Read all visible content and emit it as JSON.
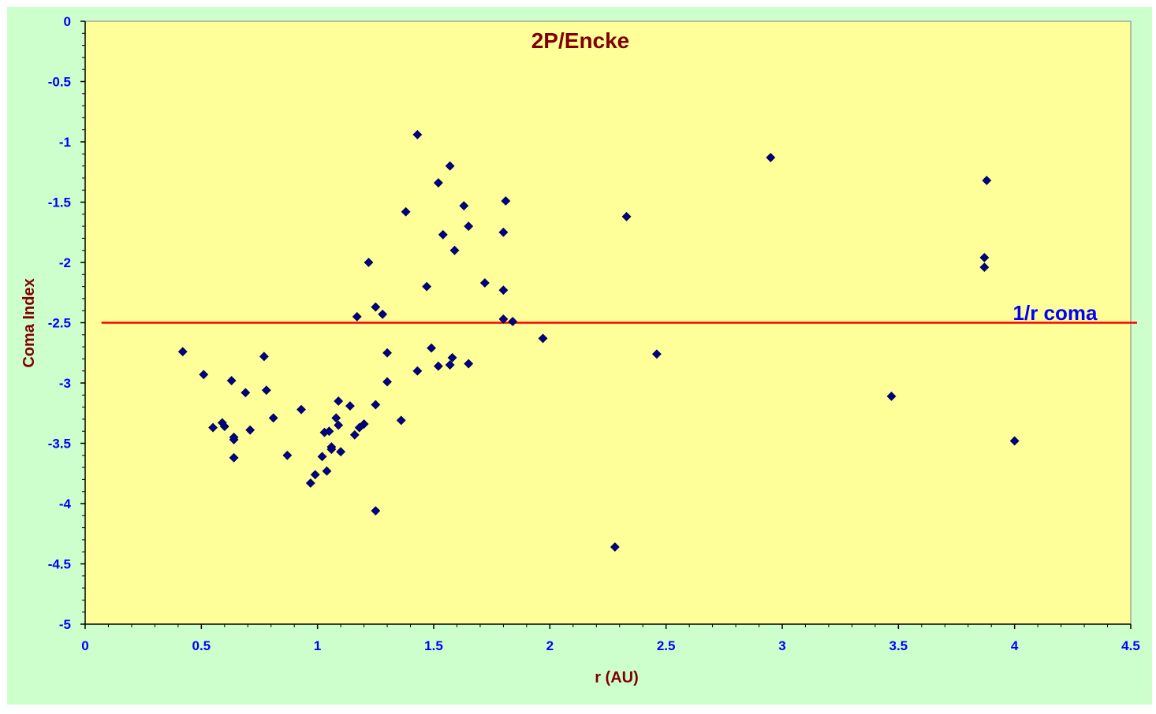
{
  "colors": {
    "outer_background": "#ccffcc",
    "plot_background": "#ffff99",
    "axis": "#000000",
    "marker": "#000080",
    "reference_line": "#ff0000",
    "tick_labels": "#0000ff",
    "axis_titles": "#800000",
    "title": "#800000",
    "annotation": "#0000ff"
  },
  "chart_data": {
    "type": "scatter",
    "title": "2P/Encke",
    "xlabel": "r (AU)",
    "ylabel": "Coma Index",
    "xlim": [
      0,
      4.5
    ],
    "ylim": [
      -5,
      0
    ],
    "x_ticks": [
      "0",
      "0.5",
      "1",
      "1.5",
      "2",
      "2.5",
      "3",
      "3.5",
      "4",
      "4.5"
    ],
    "x_tick_values": [
      0,
      0.5,
      1,
      1.5,
      2,
      2.5,
      3,
      3.5,
      4,
      4.5
    ],
    "y_ticks": [
      "0",
      "-0.5",
      "-1",
      "-1.5",
      "-2",
      "-2.5",
      "-3",
      "-3.5",
      "-4",
      "-4.5",
      "-5"
    ],
    "y_tick_values": [
      0,
      -0.5,
      -1,
      -1.5,
      -2,
      -2.5,
      -3,
      -3.5,
      -4,
      -4.5,
      -5
    ],
    "grid": false,
    "marker": "diamond",
    "reference_line": {
      "y": -2.5,
      "x_range": [
        0.07,
        4.5
      ],
      "label": "1/r coma"
    },
    "points": [
      [
        0.42,
        -2.74
      ],
      [
        0.51,
        -2.93
      ],
      [
        0.55,
        -3.37
      ],
      [
        0.59,
        -3.33
      ],
      [
        0.6,
        -3.36
      ],
      [
        0.63,
        -2.98
      ],
      [
        0.64,
        -3.45
      ],
      [
        0.64,
        -3.47
      ],
      [
        0.64,
        -3.62
      ],
      [
        0.69,
        -3.08
      ],
      [
        0.71,
        -3.39
      ],
      [
        0.77,
        -2.78
      ],
      [
        0.78,
        -3.06
      ],
      [
        0.81,
        -3.29
      ],
      [
        0.87,
        -3.6
      ],
      [
        0.93,
        -3.22
      ],
      [
        0.97,
        -3.83
      ],
      [
        0.99,
        -3.76
      ],
      [
        1.02,
        -3.61
      ],
      [
        1.03,
        -3.41
      ],
      [
        1.04,
        -3.73
      ],
      [
        1.05,
        -3.4
      ],
      [
        1.06,
        -3.53
      ],
      [
        1.06,
        -3.55
      ],
      [
        1.08,
        -3.29
      ],
      [
        1.09,
        -3.35
      ],
      [
        1.09,
        -3.15
      ],
      [
        1.1,
        -3.57
      ],
      [
        1.14,
        -3.19
      ],
      [
        1.16,
        -3.43
      ],
      [
        1.17,
        -2.45
      ],
      [
        1.18,
        -3.37
      ],
      [
        1.2,
        -3.34
      ],
      [
        1.22,
        -2.0
      ],
      [
        1.25,
        -2.37
      ],
      [
        1.25,
        -3.18
      ],
      [
        1.25,
        -4.06
      ],
      [
        1.28,
        -2.43
      ],
      [
        1.3,
        -2.75
      ],
      [
        1.3,
        -2.99
      ],
      [
        1.36,
        -3.31
      ],
      [
        1.38,
        -1.58
      ],
      [
        1.43,
        -0.94
      ],
      [
        1.43,
        -2.9
      ],
      [
        1.47,
        -2.2
      ],
      [
        1.49,
        -2.71
      ],
      [
        1.52,
        -1.34
      ],
      [
        1.52,
        -2.86
      ],
      [
        1.54,
        -1.77
      ],
      [
        1.57,
        -1.2
      ],
      [
        1.57,
        -2.85
      ],
      [
        1.58,
        -2.79
      ],
      [
        1.59,
        -1.9
      ],
      [
        1.63,
        -1.53
      ],
      [
        1.65,
        -1.7
      ],
      [
        1.65,
        -2.84
      ],
      [
        1.72,
        -2.17
      ],
      [
        1.8,
        -1.75
      ],
      [
        1.8,
        -2.23
      ],
      [
        1.8,
        -2.47
      ],
      [
        1.81,
        -1.49
      ],
      [
        1.84,
        -2.49
      ],
      [
        1.97,
        -2.63
      ],
      [
        2.28,
        -4.36
      ],
      [
        2.33,
        -1.62
      ],
      [
        2.46,
        -2.76
      ],
      [
        2.95,
        -1.13
      ],
      [
        3.47,
        -3.11
      ],
      [
        3.87,
        -2.04
      ],
      [
        3.87,
        -1.96
      ],
      [
        3.88,
        -1.32
      ],
      [
        4.0,
        -3.48
      ]
    ]
  }
}
